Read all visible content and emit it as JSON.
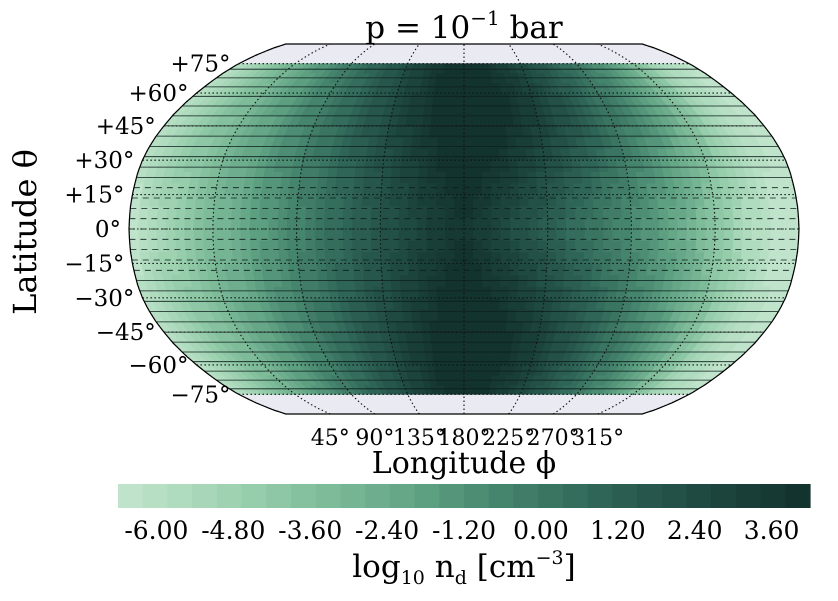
{
  "chart_data": {
    "type": "heatmap",
    "projection": "Robinson (global map)",
    "title": "p = 10−1 bar",
    "title_parts": {
      "base": "p = 10",
      "exponent": "−1",
      "unit": "bar"
    },
    "xlabel": "Longitude ϕ",
    "ylabel": "Latitude θ",
    "x_ticks": [
      45,
      90,
      135,
      180,
      225,
      270,
      315
    ],
    "x_tick_labels": [
      "45°",
      "90°",
      "135°",
      "180°",
      "225°",
      "270°",
      "315°"
    ],
    "y_ticks": [
      75,
      60,
      45,
      30,
      15,
      0,
      -15,
      -30,
      -45,
      -60,
      -75
    ],
    "y_tick_labels": [
      "+75°",
      "+60°",
      "+45°",
      "+30°",
      "+15°",
      "0°",
      "−15°",
      "−30°",
      "−45°",
      "−60°",
      "−75°"
    ],
    "xlim": [
      0,
      360
    ],
    "ylim": [
      -90,
      90
    ],
    "data_lat_extent": [
      -75,
      75
    ],
    "grid": true,
    "colorbar": {
      "label": "log10 nd [cm−3]",
      "label_parts": {
        "log": "log",
        "log_sub": "10",
        "n": "n",
        "n_sub": "d",
        "unit_open": "[cm",
        "unit_exp": "−3",
        "unit_close": "]"
      },
      "range": [
        -6.6,
        4.2
      ],
      "levels": 28,
      "tick_values": [
        -6.0,
        -4.8,
        -3.6,
        -2.4,
        -1.2,
        0.0,
        1.2,
        2.4,
        3.6
      ],
      "tick_labels": [
        "-6.00",
        "-4.80",
        "-3.60",
        "-2.40",
        "-1.20",
        "0.00",
        "1.20",
        "2.40",
        "3.60"
      ],
      "colormap_light": "#c3e6cf",
      "colormap_dark": "#11302c"
    },
    "field": {
      "min_value": -6.6,
      "min_location": {
        "lon": 0,
        "lat": 0
      },
      "max_value": 4.2,
      "max_locations": [
        {
          "lon": 220,
          "lat": 50
        },
        {
          "lon": 220,
          "lat": -50
        }
      ],
      "contours_negative": "dashed",
      "contours_positive": "solid"
    },
    "colors": {
      "frame": "#000000",
      "grid": "#111111",
      "polar_fill": "#eaeaf2"
    }
  }
}
